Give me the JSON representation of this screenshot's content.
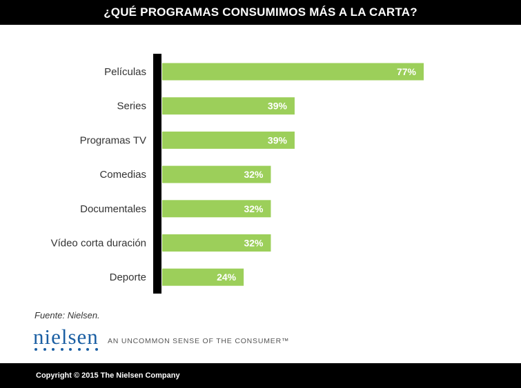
{
  "header": {
    "title": "¿QUÉ PROGRAMAS CONSUMIMOS MÁS A LA CARTA?"
  },
  "source_note": "Fuente: Nielsen.",
  "logo": {
    "brand": "nielsen",
    "tagline": "AN UNCOMMON SENSE OF THE CONSUMER™"
  },
  "footer": {
    "copyright": "Copyright © 2015 The Nielsen Company"
  },
  "colors": {
    "bar": "#9ccf5a",
    "axis": "#000000",
    "bar_label": "#ffffff",
    "category_label": "#333333"
  },
  "chart_data": {
    "type": "bar",
    "orientation": "horizontal",
    "title": "¿QUÉ PROGRAMAS CONSUMIMOS MÁS A LA CARTA?",
    "categories": [
      "Películas",
      "Series",
      "Programas TV",
      "Comedias",
      "Documentales",
      "Vídeo corta duración",
      "Deporte"
    ],
    "values": [
      77,
      39,
      39,
      32,
      32,
      32,
      24
    ],
    "value_labels": [
      "77%",
      "39%",
      "39%",
      "32%",
      "32%",
      "32%",
      "24%"
    ],
    "xlim": [
      0,
      100
    ],
    "grid": false,
    "legend": "none"
  }
}
